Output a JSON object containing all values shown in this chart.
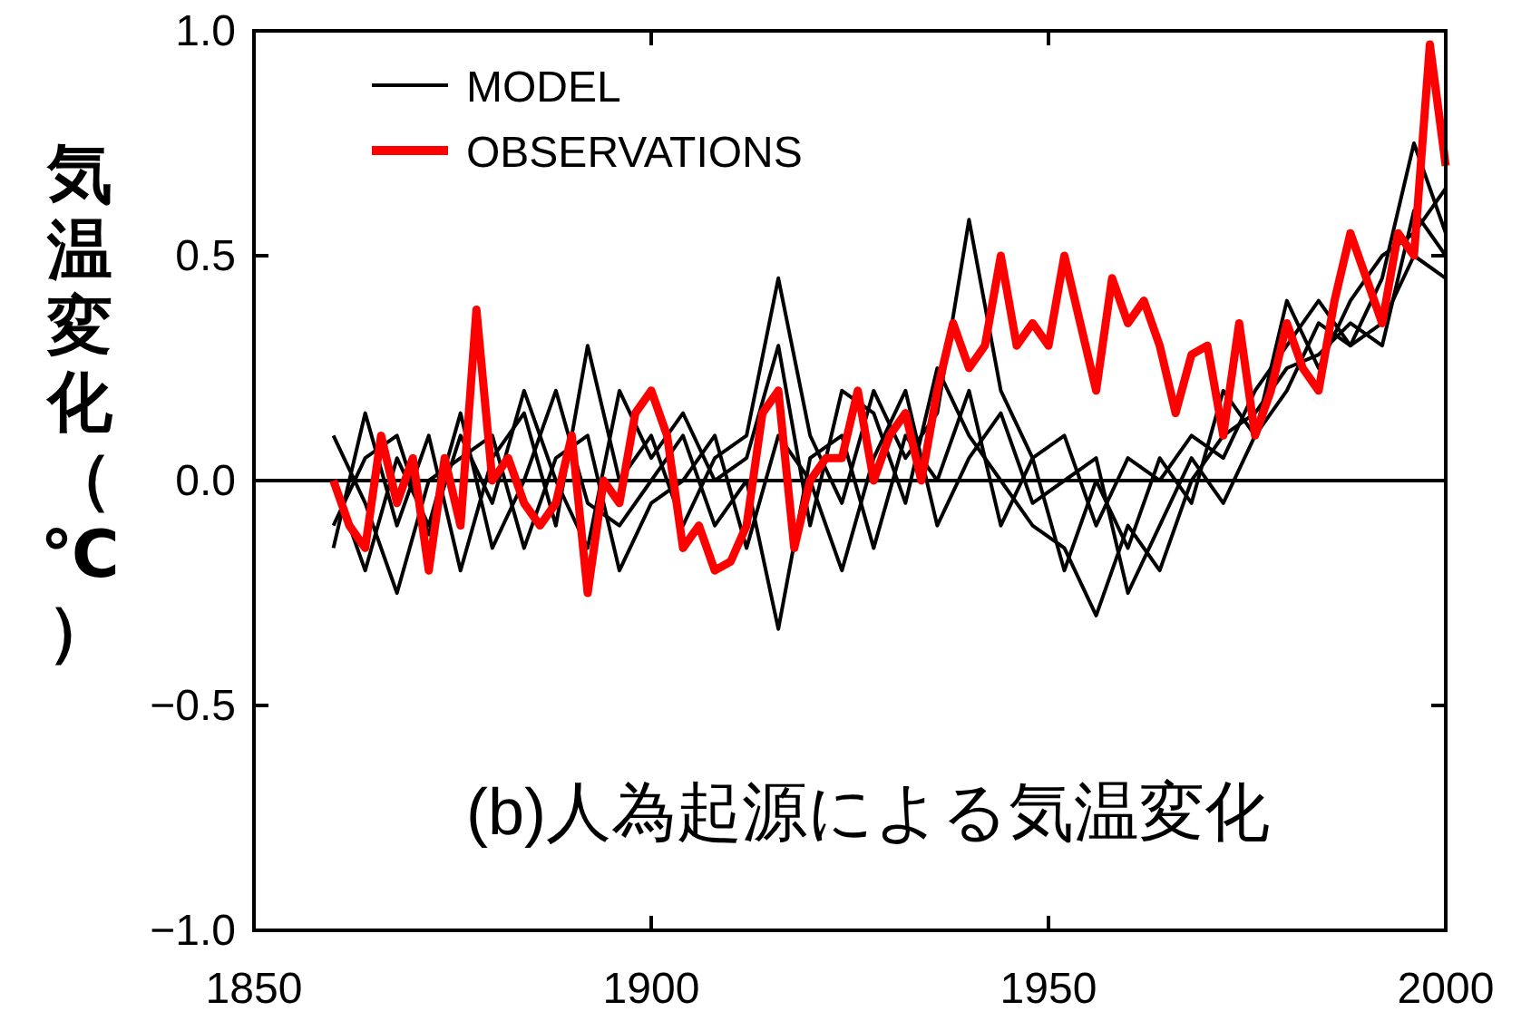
{
  "chart_data": {
    "type": "line",
    "ylabel": "気温変化（℃）",
    "annotations": [
      "(b)人為起源による気温変化"
    ],
    "legend": "top left",
    "xlim": [
      1850,
      2000
    ],
    "xticks": [
      1850,
      1900,
      1950,
      2000
    ],
    "ylim": [
      -1,
      1
    ],
    "yticks": [
      {
        "value": -1,
        "label": "−1.0"
      },
      {
        "value": -0.5,
        "label": "−0.5"
      },
      {
        "value": 0,
        "label": "0.0"
      },
      {
        "value": 0.5,
        "label": "0.5"
      },
      {
        "value": 1,
        "label": "1.0"
      }
    ],
    "ref_lines": [
      {
        "axis": "y",
        "value": 0,
        "color": "#000000"
      }
    ],
    "x": [
      1860,
      1864,
      1868,
      1872,
      1876,
      1880,
      1884,
      1888,
      1892,
      1896,
      1900,
      1904,
      1908,
      1912,
      1916,
      1920,
      1924,
      1928,
      1932,
      1936,
      1940,
      1944,
      1948,
      1952,
      1956,
      1960,
      1964,
      1968,
      1972,
      1976,
      1980,
      1984,
      1988,
      1992,
      1996,
      2000
    ],
    "series": [
      {
        "name": "MODEL",
        "color": "#000000",
        "values": [
          -0.15,
          0.15,
          -0.1,
          0.1,
          -0.2,
          0.05,
          0.15,
          -0.1,
          0.3,
          0.0,
          0.1,
          -0.1,
          0.05,
          0.1,
          0.45,
          0.1,
          -0.05,
          0.2,
          0.05,
          0.15,
          0.58,
          0.2,
          0.05,
          0.1,
          -0.1,
          0.05,
          0.0,
          0.1,
          0.05,
          0.2,
          0.3,
          0.4,
          0.3,
          0.45,
          0.75,
          0.55
        ]
      },
      {
        "color": "#000000",
        "values": [
          -0.1,
          0.05,
          0.1,
          -0.12,
          0.1,
          -0.05,
          0.2,
          0.0,
          -0.15,
          0.2,
          0.05,
          0.15,
          0.0,
          0.05,
          0.3,
          -0.1,
          0.2,
          0.15,
          -0.05,
          0.25,
          0.1,
          0.0,
          -0.1,
          -0.15,
          -0.3,
          -0.1,
          -0.2,
          0.0,
          0.1,
          0.15,
          0.25,
          0.28,
          0.35,
          0.3,
          0.6,
          0.5
        ]
      },
      {
        "color": "#000000",
        "values": [
          0.0,
          -0.2,
          0.05,
          -0.1,
          0.15,
          -0.15,
          0.0,
          0.2,
          -0.05,
          -0.1,
          0.0,
          0.1,
          -0.1,
          0.0,
          -0.33,
          0.05,
          0.1,
          -0.15,
          0.1,
          0.0,
          0.2,
          -0.1,
          0.05,
          -0.2,
          0.0,
          -0.15,
          0.05,
          -0.05,
          0.2,
          0.1,
          0.4,
          0.25,
          0.4,
          0.5,
          0.55,
          0.65
        ]
      },
      {
        "color": "#000000",
        "values": [
          0.1,
          -0.05,
          -0.25,
          0.0,
          0.05,
          0.1,
          -0.15,
          0.05,
          0.1,
          -0.2,
          -0.05,
          0.0,
          0.1,
          -0.15,
          0.1,
          0.0,
          -0.2,
          0.05,
          0.2,
          -0.1,
          0.05,
          0.15,
          -0.05,
          0.0,
          0.05,
          -0.25,
          -0.1,
          0.05,
          -0.05,
          0.1,
          0.2,
          0.35,
          0.3,
          0.35,
          0.5,
          0.45
        ]
      },
      {
        "name": "OBSERVATIONS",
        "color": "#ff0000",
        "x": [
          1860,
          1862,
          1864,
          1866,
          1868,
          1870,
          1872,
          1874,
          1876,
          1878,
          1880,
          1882,
          1884,
          1886,
          1888,
          1890,
          1892,
          1894,
          1896,
          1898,
          1900,
          1902,
          1904,
          1906,
          1908,
          1910,
          1912,
          1914,
          1916,
          1918,
          1920,
          1922,
          1924,
          1926,
          1928,
          1930,
          1932,
          1934,
          1936,
          1938,
          1940,
          1942,
          1944,
          1946,
          1948,
          1950,
          1952,
          1954,
          1956,
          1958,
          1960,
          1962,
          1964,
          1966,
          1968,
          1970,
          1972,
          1974,
          1976,
          1978,
          1980,
          1982,
          1984,
          1986,
          1988,
          1990,
          1992,
          1994,
          1996,
          1998,
          2000
        ],
        "values": [
          0.0,
          -0.1,
          -0.15,
          0.1,
          -0.05,
          0.05,
          -0.2,
          0.05,
          -0.1,
          0.38,
          0.0,
          0.05,
          -0.05,
          -0.1,
          -0.05,
          0.1,
          -0.25,
          0.0,
          -0.05,
          0.15,
          0.2,
          0.1,
          -0.15,
          -0.1,
          -0.2,
          -0.18,
          -0.1,
          0.15,
          0.2,
          -0.15,
          0.0,
          0.05,
          0.05,
          0.2,
          0.0,
          0.1,
          0.15,
          0.0,
          0.2,
          0.35,
          0.25,
          0.3,
          0.5,
          0.3,
          0.35,
          0.3,
          0.5,
          0.35,
          0.2,
          0.45,
          0.35,
          0.4,
          0.3,
          0.15,
          0.28,
          0.3,
          0.1,
          0.35,
          0.1,
          0.2,
          0.35,
          0.25,
          0.2,
          0.4,
          0.55,
          0.45,
          0.35,
          0.55,
          0.5,
          0.97,
          0.7
        ]
      }
    ]
  }
}
